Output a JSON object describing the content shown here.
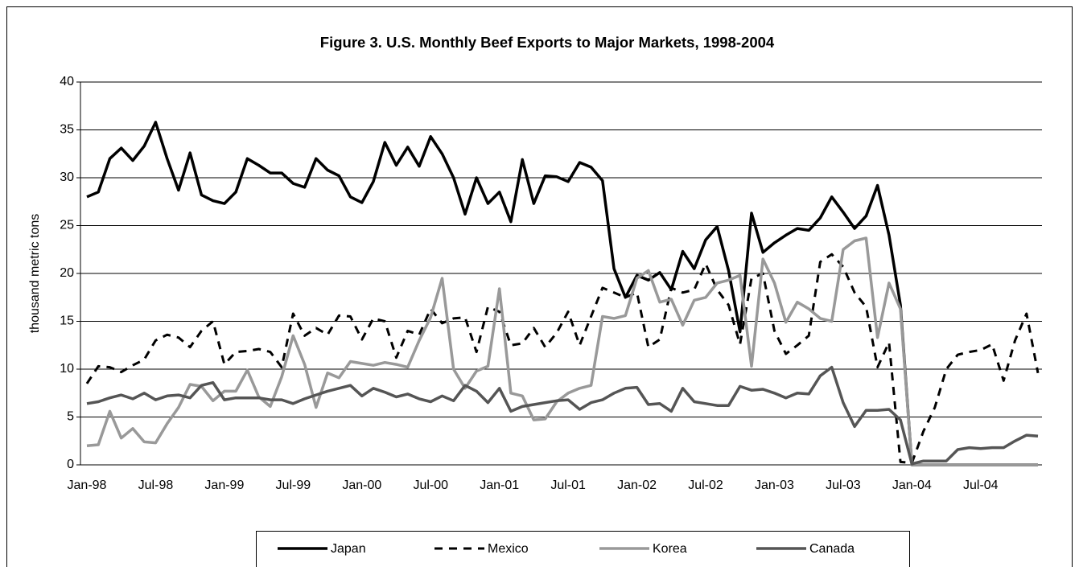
{
  "chart_data": {
    "type": "line",
    "title": "Figure 3. U.S. Monthly Beef Exports to Major Markets, 1998-2004",
    "y_label": "thousand metric tons",
    "categories": [
      "Jan-98",
      null,
      null,
      null,
      null,
      null,
      "Jul-98",
      null,
      null,
      null,
      null,
      null,
      "Jan-99",
      null,
      null,
      null,
      null,
      null,
      "Jul-99",
      null,
      null,
      null,
      null,
      null,
      "Jan-00",
      null,
      null,
      null,
      null,
      null,
      "Jul-00",
      null,
      null,
      null,
      null,
      null,
      "Jan-01",
      null,
      null,
      null,
      null,
      null,
      "Jul-01",
      null,
      null,
      null,
      null,
      null,
      "Jan-02",
      null,
      null,
      null,
      null,
      null,
      "Jul-02",
      null,
      null,
      null,
      null,
      null,
      "Jan-03",
      null,
      null,
      null,
      null,
      null,
      "Jul-03",
      null,
      null,
      null,
      null,
      null,
      "Jan-04",
      null,
      null,
      null,
      null,
      null,
      "Jul-04",
      null,
      null,
      null,
      null,
      null
    ],
    "series": [
      {
        "name": "Japan",
        "color": "#000000",
        "line_style": "solid",
        "values": [
          28,
          28.5,
          32,
          33.1,
          31.8,
          33.3,
          35.8,
          32,
          28.7,
          32.6,
          28.2,
          27.6,
          27.3,
          28.5,
          32,
          31.3,
          30.5,
          30.5,
          29.4,
          29,
          32,
          30.8,
          30.2,
          28,
          27.4,
          29.6,
          33.7,
          31.3,
          33.2,
          31.2,
          34.3,
          32.5,
          30,
          26.2,
          30,
          27.3,
          28.5,
          25.4,
          31.9,
          27.3,
          30.2,
          30.1,
          29.6,
          31.6,
          31.1,
          29.7,
          20.5,
          17.5,
          19.8,
          19.3,
          20.1,
          18.3,
          22.3,
          20.5,
          23.5,
          24.9,
          20.3,
          13.9,
          26.3,
          22.2,
          23.2,
          24,
          24.7,
          24.5,
          25.8,
          28,
          26.4,
          24.7,
          26,
          29.2,
          24,
          16.7,
          0,
          0,
          0,
          0,
          0,
          0,
          0,
          0,
          0,
          0,
          0,
          0
        ]
      },
      {
        "name": "Mexico",
        "color": "#000000",
        "line_style": "dashed",
        "values": [
          8.5,
          10.3,
          10.2,
          9.7,
          10.4,
          11,
          13,
          13.6,
          13.3,
          12.3,
          14,
          15,
          10.5,
          11.8,
          11.9,
          12.1,
          11.8,
          10.2,
          15.8,
          13.5,
          14.3,
          13.6,
          15.6,
          15.5,
          13.1,
          15.3,
          15,
          11.2,
          14,
          13.6,
          16.3,
          14.8,
          15.3,
          15.4,
          11.8,
          16.5,
          16,
          12.5,
          12.7,
          14.3,
          12.3,
          13.8,
          16,
          12.5,
          15.5,
          18.5,
          18,
          17.5,
          18,
          12.3,
          13.1,
          18.5,
          18,
          18.3,
          21,
          18.3,
          16.7,
          12.6,
          19.5,
          20,
          14,
          11.6,
          12.5,
          13.5,
          21.2,
          22,
          20.7,
          18,
          16.5,
          10.2,
          12.8,
          0.3,
          0.2,
          3.5,
          6,
          10,
          11.5,
          11.8,
          12,
          12.6,
          8.8,
          13,
          15.8,
          9.6
        ]
      },
      {
        "name": "Korea",
        "color": "#999999",
        "line_style": "solid",
        "values": [
          2,
          2.1,
          5.6,
          2.8,
          3.8,
          2.4,
          2.3,
          4.3,
          6,
          8.4,
          8.2,
          6.7,
          7.7,
          7.7,
          9.9,
          7.1,
          6.1,
          9.2,
          13.5,
          10.5,
          6,
          9.6,
          9.1,
          10.8,
          10.6,
          10.4,
          10.7,
          10.5,
          10.2,
          13,
          15.4,
          19.5,
          10,
          8,
          9.8,
          10.3,
          18.4,
          7.5,
          7.2,
          4.7,
          4.8,
          6.6,
          7.5,
          8,
          8.3,
          15.5,
          15.3,
          15.6,
          19.5,
          20.3,
          17,
          17.3,
          14.6,
          17.2,
          17.5,
          19,
          19.3,
          19.8,
          10.3,
          21.5,
          19,
          14.9,
          17,
          16.3,
          15.3,
          15,
          22.5,
          23.4,
          23.7,
          13.3,
          19,
          16.3,
          0,
          0,
          0,
          0,
          0,
          0,
          0,
          0,
          0,
          0,
          0,
          0
        ]
      },
      {
        "name": "Canada",
        "color": "#555555",
        "line_style": "solid",
        "values": [
          6.4,
          6.6,
          7,
          7.3,
          6.9,
          7.5,
          6.8,
          7.2,
          7.3,
          7,
          8.3,
          8.6,
          6.8,
          7,
          7,
          7,
          6.8,
          6.8,
          6.4,
          6.9,
          7.3,
          7.7,
          8,
          8.3,
          7.2,
          8,
          7.6,
          7.1,
          7.4,
          6.9,
          6.6,
          7.2,
          6.7,
          8.3,
          7.7,
          6.5,
          8,
          5.6,
          6.1,
          6.3,
          6.5,
          6.7,
          6.8,
          5.8,
          6.5,
          6.8,
          7.5,
          8,
          8.1,
          6.3,
          6.4,
          5.6,
          8,
          6.6,
          6.4,
          6.2,
          6.2,
          8.2,
          7.8,
          7.9,
          7.5,
          7,
          7.5,
          7.4,
          9.3,
          10.2,
          6.5,
          4,
          5.7,
          5.7,
          5.8,
          4.7,
          0.1,
          0.4,
          0.4,
          0.4,
          1.6,
          1.8,
          1.7,
          1.8,
          1.8,
          2.5,
          3.1,
          3
        ]
      }
    ],
    "ylim": [
      0,
      40
    ],
    "yticks": [
      0,
      5,
      10,
      15,
      20,
      25,
      30,
      35,
      40
    ],
    "grid": true,
    "legend": "bottom"
  }
}
